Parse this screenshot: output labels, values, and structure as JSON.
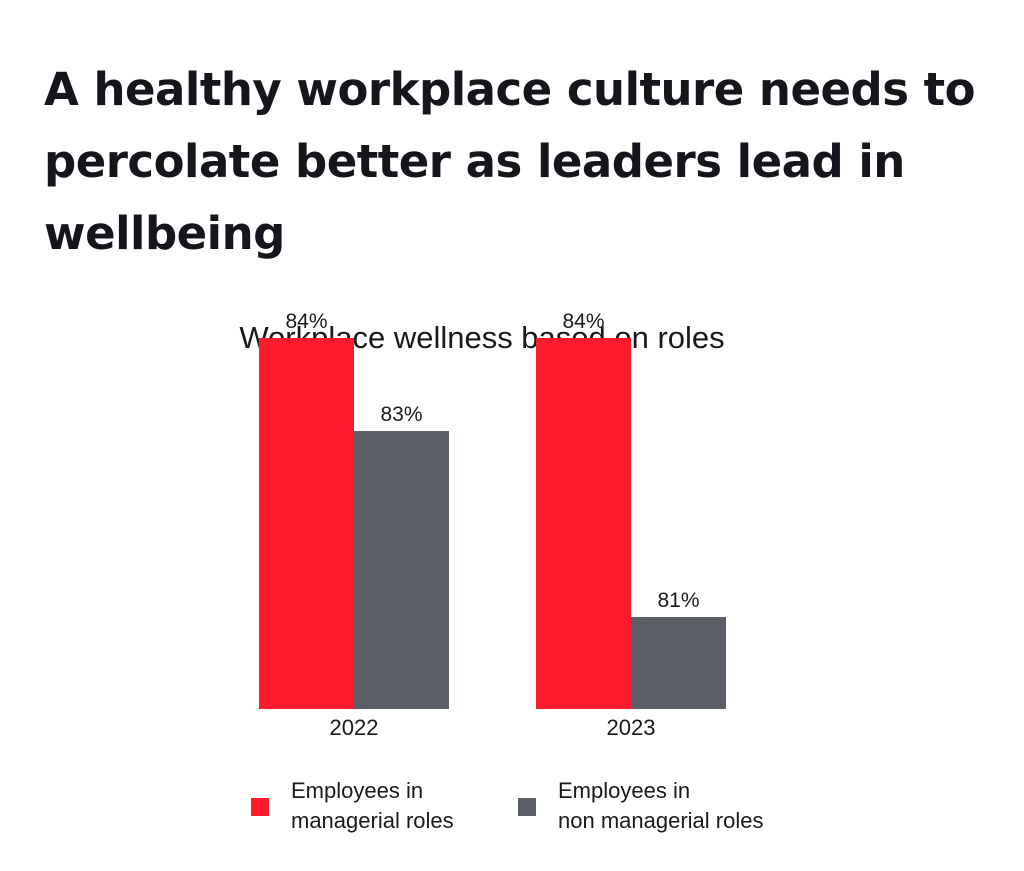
{
  "headline": "A healthy workplace culture needs to percolate better as leaders lead in wellbeing",
  "chart_data": {
    "type": "bar",
    "title": "Workplace wellness based on roles",
    "categories": [
      "2022",
      "2023"
    ],
    "series": [
      {
        "name": "Employees in managerial roles",
        "color": "#ff1a2c",
        "values": [
          84,
          84
        ],
        "labels": [
          "84%",
          "84%"
        ]
      },
      {
        "name": "Employees in non managerial roles",
        "color": "#5a5f66",
        "values": [
          83,
          81
        ],
        "labels": [
          "83%",
          "81%"
        ]
      }
    ],
    "legend": {
      "placement": "bottom",
      "items": [
        {
          "line1": "Employees in",
          "line2": "managerial roles",
          "color": "#ff1a2c"
        },
        {
          "line1": "Employees in",
          "line2": "non managerial roles",
          "color": "#5a5f66"
        }
      ]
    },
    "grid": false,
    "axes_visible": false
  }
}
